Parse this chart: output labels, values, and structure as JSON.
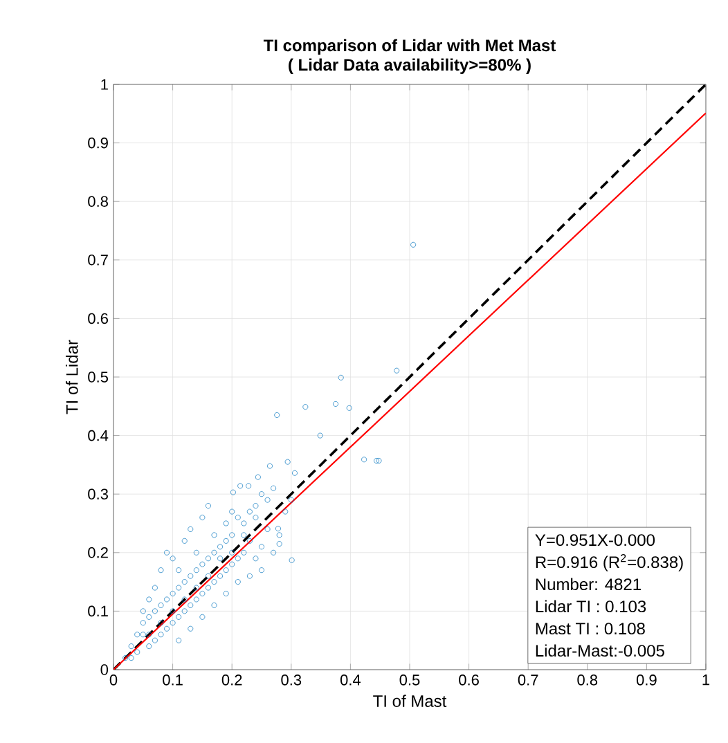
{
  "chart_data": {
    "type": "scatter",
    "title": "TI comparison of Lidar with Met Mast",
    "subtitle": "( Lidar Data availability>=80% )",
    "xlabel": "TI of Mast",
    "ylabel": "TI of Lidar",
    "xlim": [
      0,
      1
    ],
    "ylim": [
      0,
      1
    ],
    "xticks": [
      0,
      0.1,
      0.2,
      0.3,
      0.4,
      0.5,
      0.6,
      0.7,
      0.8,
      0.9,
      1
    ],
    "yticks": [
      0,
      0.1,
      0.2,
      0.3,
      0.4,
      0.5,
      0.6,
      0.7,
      0.8,
      0.9,
      1
    ],
    "grid": true,
    "series": [
      {
        "color": "#0072bd",
        "marker": "circle",
        "x": [
          0.02,
          0.03,
          0.04,
          0.05,
          0.04,
          0.06,
          0.05,
          0.07,
          0.06,
          0.08,
          0.07,
          0.09,
          0.08,
          0.1,
          0.09,
          0.11,
          0.1,
          0.12,
          0.11,
          0.13,
          0.12,
          0.14,
          0.13,
          0.15,
          0.14,
          0.16,
          0.15,
          0.17,
          0.16,
          0.18,
          0.17,
          0.19,
          0.18,
          0.2,
          0.19,
          0.21,
          0.2,
          0.22,
          0.23,
          0.24,
          0.25,
          0.26,
          0.22,
          0.23,
          0.21,
          0.2,
          0.24,
          0.26,
          0.27,
          0.25,
          0.12,
          0.13,
          0.15,
          0.16,
          0.1,
          0.08,
          0.09,
          0.07,
          0.06,
          0.05,
          0.11,
          0.13,
          0.15,
          0.17,
          0.19,
          0.21,
          0.23,
          0.25,
          0.27,
          0.28,
          0.03,
          0.12,
          0.14,
          0.1,
          0.16,
          0.18,
          0.08,
          0.06,
          0.2,
          0.22,
          0.11,
          0.14,
          0.17,
          0.19,
          0.24,
          0.29,
          0.3,
          0.276,
          0.324,
          0.375,
          0.398,
          0.349,
          0.423,
          0.444,
          0.448,
          0.264,
          0.294,
          0.306,
          0.301,
          0.28,
          0.278,
          0.244,
          0.214,
          0.228,
          0.202,
          0.506,
          0.384,
          0.478
        ],
        "values": [
          0.02,
          0.04,
          0.03,
          0.06,
          0.06,
          0.04,
          0.08,
          0.05,
          0.09,
          0.06,
          0.1,
          0.07,
          0.11,
          0.08,
          0.12,
          0.09,
          0.13,
          0.1,
          0.14,
          0.11,
          0.15,
          0.12,
          0.16,
          0.13,
          0.17,
          0.14,
          0.18,
          0.15,
          0.19,
          0.16,
          0.2,
          0.17,
          0.21,
          0.18,
          0.22,
          0.19,
          0.23,
          0.2,
          0.22,
          0.19,
          0.21,
          0.24,
          0.25,
          0.27,
          0.26,
          0.27,
          0.28,
          0.29,
          0.31,
          0.3,
          0.22,
          0.24,
          0.26,
          0.28,
          0.19,
          0.17,
          0.2,
          0.14,
          0.12,
          0.1,
          0.05,
          0.07,
          0.09,
          0.11,
          0.13,
          0.15,
          0.16,
          0.17,
          0.2,
          0.23,
          0.02,
          0.12,
          0.14,
          0.1,
          0.16,
          0.19,
          0.08,
          0.06,
          0.2,
          0.23,
          0.17,
          0.2,
          0.23,
          0.25,
          0.26,
          0.27,
          0.29,
          0.435,
          0.449,
          0.454,
          0.447,
          0.4,
          0.359,
          0.357,
          0.357,
          0.348,
          0.355,
          0.336,
          0.187,
          0.215,
          0.241,
          0.329,
          0.314,
          0.314,
          0.303,
          0.726,
          0.499,
          0.511
        ]
      },
      {
        "type": "line",
        "color": "#000000",
        "line_style": "dashed",
        "marker": "none",
        "x": [
          0,
          1
        ],
        "values": [
          0,
          1
        ]
      },
      {
        "type": "line",
        "color": "#ff0000",
        "line_style": "solid",
        "marker": "none",
        "x": [
          0,
          1
        ],
        "values": [
          0,
          0.951
        ]
      }
    ],
    "annotations": [
      "Y=0.951X-0.000",
      "R=0.916 (R$^{2}$=0.838)",
      "Number: 4821",
      "Lidar TI :     0.103",
      "Mast TI :     0.108",
      "Lidar-Mast:-0.005"
    ]
  }
}
